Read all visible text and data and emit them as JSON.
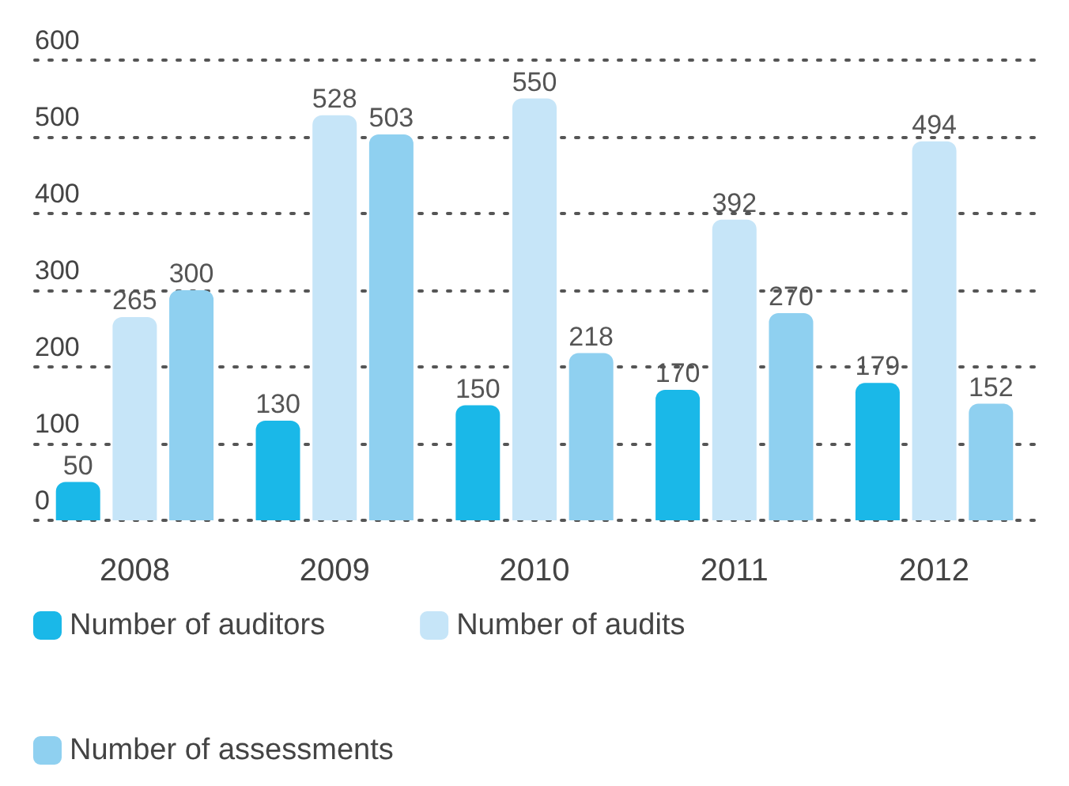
{
  "chart_data": {
    "type": "bar",
    "categories": [
      "2008",
      "2009",
      "2010",
      "2011",
      "2012"
    ],
    "series": [
      {
        "name": "Number of auditors",
        "color": "#1ab8e8",
        "values": [
          50,
          130,
          150,
          170,
          179
        ]
      },
      {
        "name": "Number of audits",
        "color": "#c6e5f8",
        "values": [
          265,
          528,
          550,
          392,
          494
        ]
      },
      {
        "name": "Number of assessments",
        "color": "#8fd0f0",
        "values": [
          300,
          503,
          218,
          270,
          152
        ]
      }
    ],
    "ylim": [
      0,
      600
    ],
    "yticks": [
      0,
      100,
      200,
      300,
      400,
      500,
      600
    ],
    "grid": "y",
    "legend": "bottom left",
    "data_labels": true
  }
}
